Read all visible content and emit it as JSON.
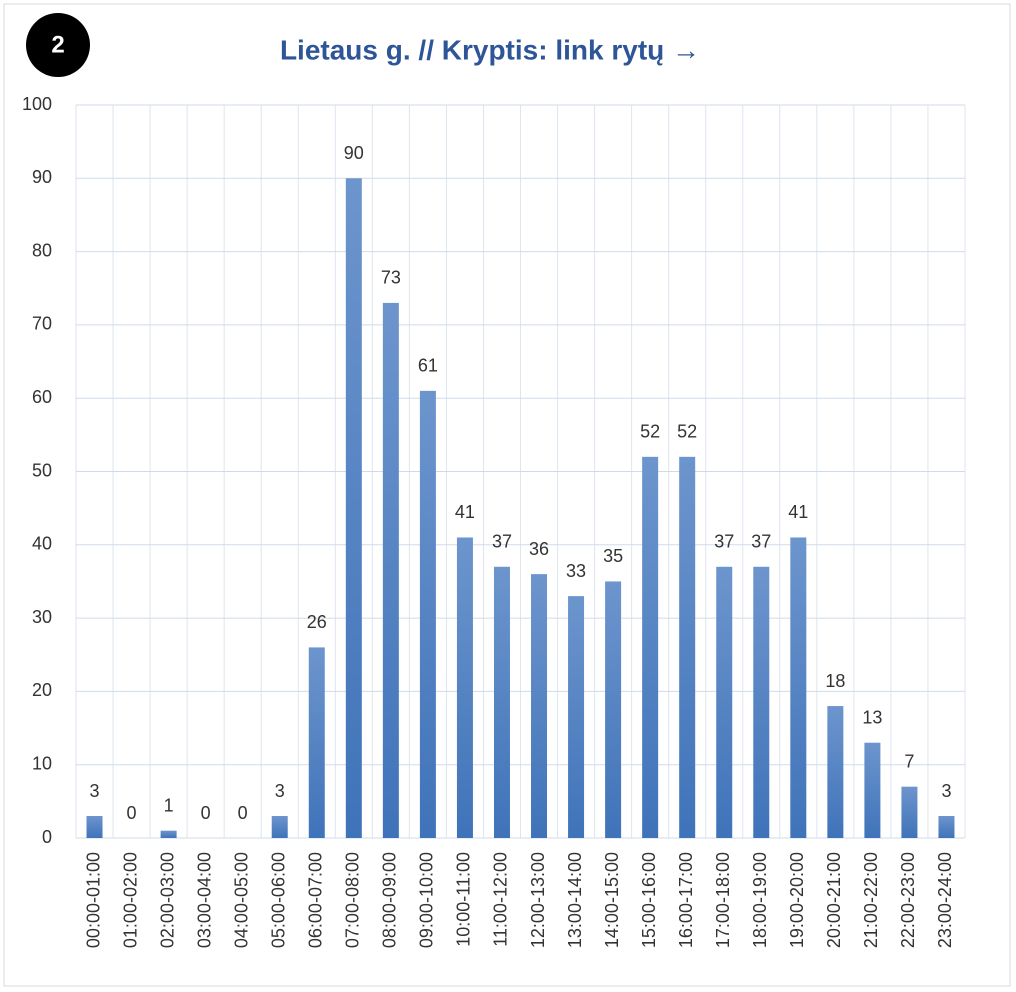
{
  "badge": "2",
  "chart_data": {
    "type": "bar",
    "title": "Lietaus g. // Kryptis: link rytų →",
    "categories": [
      "00:00-01:00",
      "01:00-02:00",
      "02:00-03:00",
      "03:00-04:00",
      "04:00-05:00",
      "05:00-06:00",
      "06:00-07:00",
      "07:00-08:00",
      "08:00-09:00",
      "09:00-10:00",
      "10:00-11:00",
      "11:00-12:00",
      "12:00-13:00",
      "13:00-14:00",
      "14:00-15:00",
      "15:00-16:00",
      "16:00-17:00",
      "17:00-18:00",
      "18:00-19:00",
      "19:00-20:00",
      "20:00-21:00",
      "21:00-22:00",
      "22:00-23:00",
      "23:00-24:00"
    ],
    "values": [
      3,
      0,
      1,
      0,
      0,
      3,
      26,
      90,
      73,
      61,
      41,
      37,
      36,
      33,
      35,
      52,
      52,
      37,
      37,
      41,
      18,
      13,
      7,
      3
    ],
    "color": "#4a7cc0",
    "ylim": [
      0,
      100
    ],
    "yticks": [
      0,
      10,
      20,
      30,
      40,
      50,
      60,
      70,
      80,
      90,
      100
    ],
    "grid": true
  }
}
